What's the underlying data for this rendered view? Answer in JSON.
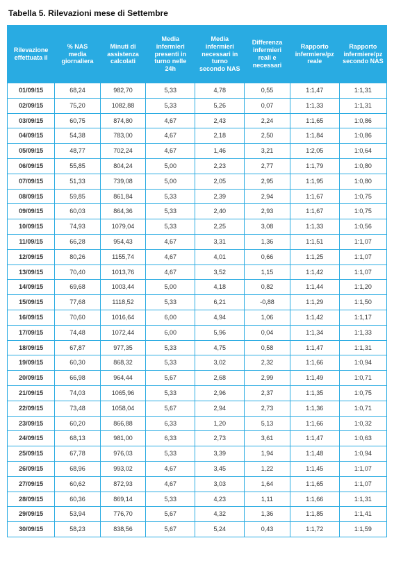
{
  "title": "Tabella 5. Rilevazioni mese di Settembre",
  "styles": {
    "header_bg": "#29abe2",
    "header_fg": "#ffffff",
    "border_color": "#29abe2",
    "cell_fg": "#333333",
    "title_fg": "#111111",
    "background": "#ffffff",
    "title_fontsize_pt": 12,
    "cell_fontsize_pt": 9,
    "col_widths_pct": [
      12.5,
      12,
      12,
      13,
      13,
      12,
      13,
      12.5
    ]
  },
  "table": {
    "columns": [
      "Rilevazione effettuata il",
      "% NAS media giornaliera",
      "Minuti di assistenza calcolati",
      "Media infermieri presenti in turno nelle 24h",
      "Media infermieri necessari in turno secondo NAS",
      "Differenza infermieri reali e necessari",
      "Rapporto infermiere/pz reale",
      "Rapporto infermiere/pz secondo NAS"
    ],
    "rows": [
      [
        "01/09/15",
        "68,24",
        "982,70",
        "5,33",
        "4,78",
        "0,55",
        "1:1,47",
        "1:1,31"
      ],
      [
        "02/09/15",
        "75,20",
        "1082,88",
        "5,33",
        "5,26",
        "0,07",
        "1:1,33",
        "1:1,31"
      ],
      [
        "03/09/15",
        "60,75",
        "874,80",
        "4,67",
        "2,43",
        "2,24",
        "1:1,65",
        "1:0,86"
      ],
      [
        "04/09/15",
        "54,38",
        "783,00",
        "4,67",
        "2,18",
        "2,50",
        "1:1,84",
        "1:0,86"
      ],
      [
        "05/09/15",
        "48,77",
        "702,24",
        "4,67",
        "1,46",
        "3,21",
        "1:2,05",
        "1:0,64"
      ],
      [
        "06/09/15",
        "55,85",
        "804,24",
        "5,00",
        "2,23",
        "2,77",
        "1:1,79",
        "1:0,80"
      ],
      [
        "07/09/15",
        "51,33",
        "739,08",
        "5,00",
        "2,05",
        "2,95",
        "1:1,95",
        "1:0,80"
      ],
      [
        "08/09/15",
        "59,85",
        "861,84",
        "5,33",
        "2,39",
        "2,94",
        "1:1,67",
        "1:0,75"
      ],
      [
        "09/09/15",
        "60,03",
        "864,36",
        "5,33",
        "2,40",
        "2,93",
        "1:1,67",
        "1:0,75"
      ],
      [
        "10/09/15",
        "74,93",
        "1079,04",
        "5,33",
        "2,25",
        "3,08",
        "1:1,33",
        "1:0,56"
      ],
      [
        "11/09/15",
        "66,28",
        "954,43",
        "4,67",
        "3,31",
        "1,36",
        "1:1,51",
        "1:1,07"
      ],
      [
        "12/09/15",
        "80,26",
        "1155,74",
        "4,67",
        "4,01",
        "0,66",
        "1:1,25",
        "1:1,07"
      ],
      [
        "13/09/15",
        "70,40",
        "1013,76",
        "4,67",
        "3,52",
        "1,15",
        "1:1,42",
        "1:1,07"
      ],
      [
        "14/09/15",
        "69,68",
        "1003,44",
        "5,00",
        "4,18",
        "0,82",
        "1:1,44",
        "1:1,20"
      ],
      [
        "15/09/15",
        "77,68",
        "1118,52",
        "5,33",
        "6,21",
        "-0,88",
        "1:1,29",
        "1:1,50"
      ],
      [
        "16/09/15",
        "70,60",
        "1016,64",
        "6,00",
        "4,94",
        "1,06",
        "1:1,42",
        "1:1,17"
      ],
      [
        "17/09/15",
        "74,48",
        "1072,44",
        "6,00",
        "5,96",
        "0,04",
        "1:1,34",
        "1:1,33"
      ],
      [
        "18/09/15",
        "67,87",
        "977,35",
        "5,33",
        "4,75",
        "0,58",
        "1:1,47",
        "1:1,31"
      ],
      [
        "19/09/15",
        "60,30",
        "868,32",
        "5,33",
        "3,02",
        "2,32",
        "1:1,66",
        "1:0,94"
      ],
      [
        "20/09/15",
        "66,98",
        "964,44",
        "5,67",
        "2,68",
        "2,99",
        "1:1,49",
        "1:0,71"
      ],
      [
        "21/09/15",
        "74,03",
        "1065,96",
        "5,33",
        "2,96",
        "2,37",
        "1:1,35",
        "1:0,75"
      ],
      [
        "22/09/15",
        "73,48",
        "1058,04",
        "5,67",
        "2,94",
        "2,73",
        "1:1,36",
        "1:0,71"
      ],
      [
        "23/09/15",
        "60,20",
        "866,88",
        "6,33",
        "1,20",
        "5,13",
        "1:1,66",
        "1:0,32"
      ],
      [
        "24/09/15",
        "68,13",
        "981,00",
        "6,33",
        "2,73",
        "3,61",
        "1:1,47",
        "1:0,63"
      ],
      [
        "25/09/15",
        "67,78",
        "976,03",
        "5,33",
        "3,39",
        "1,94",
        "1:1,48",
        "1:0,94"
      ],
      [
        "26/09/15",
        "68,96",
        "993,02",
        "4,67",
        "3,45",
        "1,22",
        "1:1,45",
        "1:1,07"
      ],
      [
        "27/09/15",
        "60,62",
        "872,93",
        "4,67",
        "3,03",
        "1,64",
        "1:1,65",
        "1:1,07"
      ],
      [
        "28/09/15",
        "60,36",
        "869,14",
        "5,33",
        "4,23",
        "1,11",
        "1:1,66",
        "1:1,31"
      ],
      [
        "29/09/15",
        "53,94",
        "776,70",
        "5,67",
        "4,32",
        "1,36",
        "1:1,85",
        "1:1,41"
      ],
      [
        "30/09/15",
        "58,23",
        "838,56",
        "5,67",
        "5,24",
        "0,43",
        "1:1,72",
        "1:1,59"
      ]
    ]
  }
}
